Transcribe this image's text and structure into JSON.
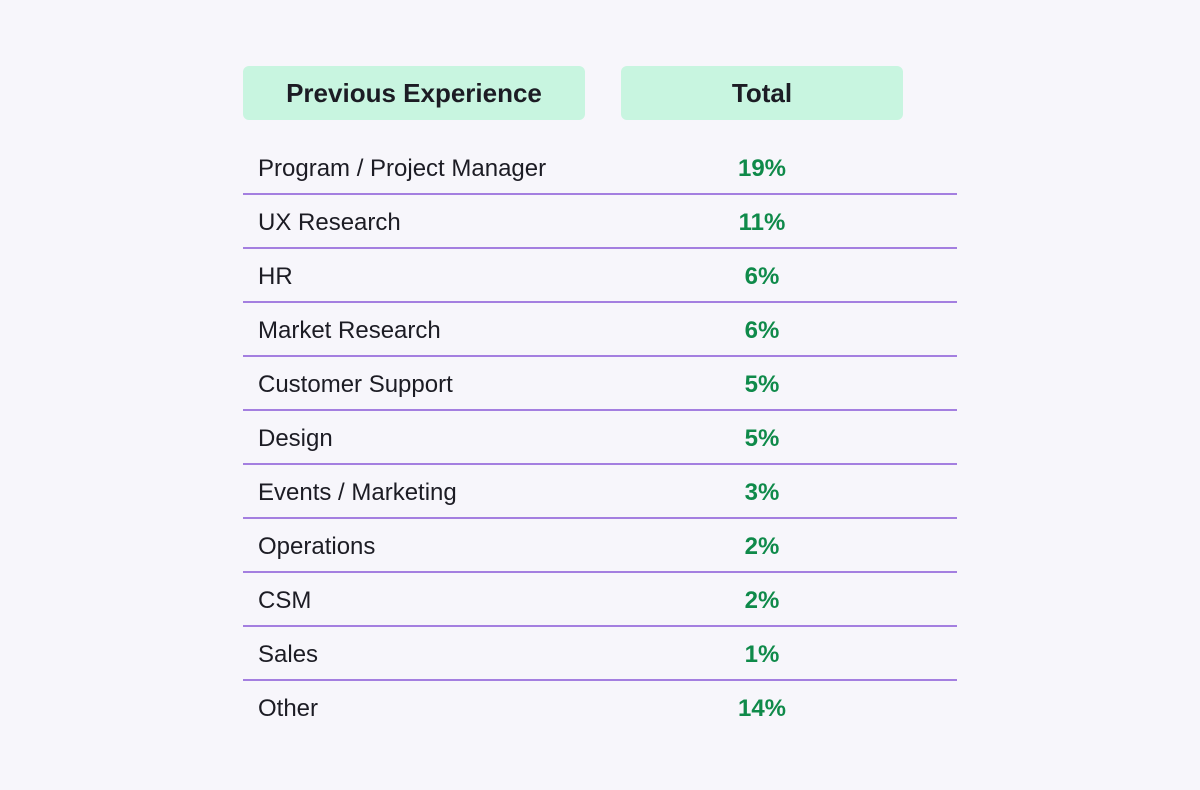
{
  "colors": {
    "background": "#f7f6fb",
    "header_fill": "#c8f5e0",
    "row_divider": "#a47fe0",
    "value_text": "#0f8a4a",
    "label_text": "#1c1c24"
  },
  "chart_data": {
    "type": "table",
    "columns": [
      "Previous Experience",
      "Total"
    ],
    "rows": [
      {
        "label": "Program / Project Manager",
        "value": "19%"
      },
      {
        "label": "UX Research",
        "value": "11%"
      },
      {
        "label": "HR",
        "value": "6%"
      },
      {
        "label": "Market Research",
        "value": "6%"
      },
      {
        "label": "Customer Support",
        "value": "5%"
      },
      {
        "label": "Design",
        "value": "5%"
      },
      {
        "label": "Events / Marketing",
        "value": "3%"
      },
      {
        "label": "Operations",
        "value": "2%"
      },
      {
        "label": "CSM",
        "value": "2%"
      },
      {
        "label": "Sales",
        "value": "1%"
      },
      {
        "label": "Other",
        "value": "14%"
      }
    ]
  }
}
